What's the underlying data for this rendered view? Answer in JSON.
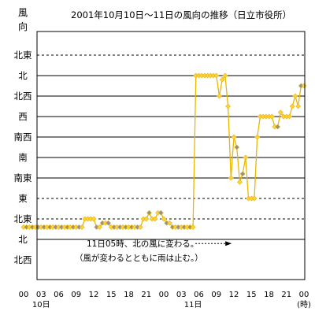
{
  "chart_data": {
    "type": "line",
    "title": "2001年10月10日～11日の風向の推移（日立市役所）",
    "ylabel": "風向",
    "y_categories": [
      "北西",
      "北",
      "北東",
      "東",
      "南東",
      "南",
      "南西",
      "西",
      "北西",
      "北",
      "北東"
    ],
    "y_grid_style": [
      "solid",
      "solid",
      "dashed",
      "dashed",
      "solid",
      "solid",
      "solid",
      "solid",
      "solid",
      "solid",
      "dashed"
    ],
    "x_tick_labels": [
      "00",
      "03",
      "06",
      "09",
      "12",
      "15",
      "18",
      "21",
      "00",
      "03",
      "06",
      "09",
      "12",
      "15",
      "18",
      "21",
      "00"
    ],
    "x_hours": [
      0,
      3,
      6,
      9,
      12,
      15,
      18,
      21,
      24,
      27,
      30,
      33,
      36,
      39,
      42,
      45,
      48
    ],
    "x_date_labels": [
      {
        "text": "10日",
        "hour": 3
      },
      {
        "text": "11日",
        "hour": 29
      }
    ],
    "x_unit": "(時)",
    "xlim": [
      0,
      48
    ],
    "annotation": {
      "lines": [
        "11日05時、北の風に変わる。",
        "（風が変わるとともに雨は止む。）"
      ],
      "arrow_from_hour": 29,
      "arrow_to_hour": 34,
      "arrow_at_category": 0.8
    },
    "series": [
      {
        "color": "#e8b800",
        "marker_fill": "#ffd040",
        "gap_marker_fill": "#909090",
        "points": [
          [
            0.0,
            1.6
          ],
          [
            0.5,
            1.6
          ],
          [
            1.0,
            1.6
          ],
          [
            1.5,
            1.6
          ],
          [
            2.0,
            1.6
          ],
          [
            2.5,
            1.6
          ],
          [
            3.0,
            1.6
          ],
          [
            3.5,
            1.6
          ],
          [
            4.0,
            1.6
          ],
          [
            4.5,
            1.6
          ],
          [
            5.0,
            1.6
          ],
          [
            5.5,
            1.6
          ],
          [
            6.0,
            1.6
          ],
          [
            6.5,
            1.6
          ],
          [
            7.0,
            1.6
          ],
          [
            7.5,
            1.6
          ],
          [
            8.0,
            1.6
          ],
          [
            8.5,
            1.6
          ],
          [
            9.0,
            1.6
          ],
          [
            9.5,
            1.6
          ],
          [
            10.0,
            1.6
          ],
          [
            10.5,
            2.0
          ],
          [
            11.0,
            2.0
          ],
          [
            11.5,
            2.0
          ],
          [
            12.0,
            2.0
          ],
          [
            12.5,
            1.6
          ],
          [
            13.0,
            1.6
          ],
          [
            13.5,
            1.8
          ],
          [
            14.0,
            1.8
          ],
          [
            14.5,
            1.8
          ],
          [
            15.0,
            1.6
          ],
          [
            15.5,
            1.6
          ],
          [
            16.0,
            1.6
          ],
          [
            16.5,
            1.6
          ],
          [
            17.0,
            1.6
          ],
          [
            17.5,
            1.6
          ],
          [
            18.0,
            1.6
          ],
          [
            18.5,
            1.6
          ],
          [
            19.0,
            1.6
          ],
          [
            19.5,
            1.6
          ],
          [
            20.0,
            1.6
          ],
          [
            20.5,
            2.0
          ],
          [
            21.0,
            2.0
          ],
          [
            21.5,
            2.3
          ],
          [
            22.0,
            2.0
          ],
          [
            22.5,
            2.0
          ],
          [
            23.0,
            2.3
          ],
          [
            23.5,
            2.3
          ],
          [
            24.0,
            2.0
          ],
          [
            24.5,
            1.8
          ],
          [
            25.0,
            1.8
          ],
          [
            25.5,
            1.6
          ],
          [
            26.0,
            1.6
          ],
          [
            26.5,
            1.6
          ],
          [
            27.0,
            1.6
          ],
          [
            27.5,
            1.6
          ],
          [
            28.0,
            1.6
          ],
          [
            28.5,
            1.6
          ],
          [
            29.0,
            1.6
          ],
          [
            29.5,
            9.0
          ],
          [
            30.0,
            9.0
          ],
          [
            30.5,
            9.0
          ],
          [
            31.0,
            9.0
          ],
          [
            31.5,
            9.0
          ],
          [
            32.0,
            9.0
          ],
          [
            32.5,
            9.0
          ],
          [
            33.0,
            9.0
          ],
          [
            33.5,
            8.0
          ],
          [
            34.0,
            8.8
          ],
          [
            34.5,
            9.0
          ],
          [
            35.0,
            7.5
          ],
          [
            35.5,
            4.0
          ],
          [
            36.0,
            6.0
          ],
          [
            36.5,
            5.5
          ],
          [
            37.0,
            3.8
          ],
          [
            37.5,
            4.2
          ],
          [
            38.0,
            5.0
          ],
          [
            38.5,
            3.0
          ],
          [
            39.0,
            3.0
          ],
          [
            39.5,
            3.0
          ],
          [
            40.0,
            6.0
          ],
          [
            40.5,
            7.0
          ],
          [
            41.0,
            7.0
          ],
          [
            41.5,
            7.0
          ],
          [
            42.0,
            7.0
          ],
          [
            42.5,
            7.0
          ],
          [
            43.0,
            6.5
          ],
          [
            43.5,
            6.5
          ],
          [
            44.0,
            7.2
          ],
          [
            44.5,
            7.0
          ],
          [
            45.0,
            7.0
          ],
          [
            45.5,
            7.0
          ],
          [
            46.0,
            7.5
          ],
          [
            46.5,
            8.0
          ],
          [
            47.0,
            7.5
          ],
          [
            47.5,
            8.5
          ],
          [
            48.0,
            8.5
          ]
        ]
      }
    ]
  }
}
